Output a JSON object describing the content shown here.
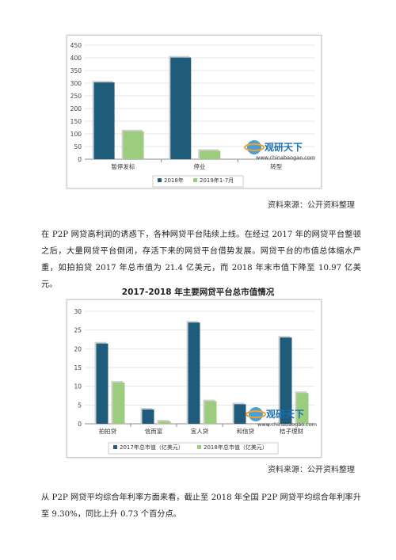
{
  "colors": {
    "series1": "#1f5c7c",
    "series2": "#9ccc7e",
    "grid": "#e4e4e4",
    "axis": "#555555"
  },
  "chart1": {
    "chart_data": {
      "type": "bar",
      "categories": [
        "暂停发标",
        "停业",
        "转型"
      ],
      "series": [
        {
          "name": "2018年",
          "values": [
            303,
            401,
            0
          ],
          "color": "#1f5c7c"
        },
        {
          "name": "2019年1-7月",
          "values": [
            110,
            33,
            0
          ],
          "color": "#9ccc7e"
        }
      ],
      "ylim": [
        0,
        450
      ],
      "yticks": [
        0,
        50,
        100,
        150,
        200,
        250,
        300,
        350,
        400,
        450
      ],
      "legend": "bottom",
      "grid": true
    }
  },
  "source1": "资料来源：公开资料整理",
  "paragraph1": "在 P2P 网贷高利润的诱惑下，各种网贷平台陆续上线。在经过 2017 年的网贷平台整顿之后，大量网贷平台倒闭，存活下来的网贷平台借势发展。网贷平台的市值总体缩水严重，如拍拍贷 2017 年总市值为 21.4 亿美元，而 2018 年末市值下降至 10.97 亿美元。",
  "chart2": {
    "title": "2017-2018 年主要网贷平台总市值情况",
    "chart_data": {
      "type": "bar",
      "categories": [
        "拍拍贷",
        "信而富",
        "宜人贷",
        "和信贷",
        "桔子理财"
      ],
      "series": [
        {
          "name": "2017年总市值（亿美元）",
          "values": [
            21.4,
            3.8,
            27,
            5.2,
            23
          ],
          "color": "#1f5c7c"
        },
        {
          "name": "2018年总市值（亿美元）",
          "values": [
            10.97,
            0.6,
            6,
            0,
            8.2
          ],
          "color": "#9ccc7e"
        }
      ],
      "ylim": [
        0,
        30
      ],
      "yticks": [
        0,
        5,
        10,
        15,
        20,
        25,
        30
      ],
      "legend": "bottom",
      "grid": true
    }
  },
  "source2": "资料来源：公开资料整理",
  "paragraph2": "从 P2P 网贷平均综合年利率方面来看，截止至 2018 年全国 P2P 网贷平均综合年利率升至 9.30%，同比上升 0.73 个百分点。",
  "watermark": {
    "cn": "观研天下",
    "en": "www.chinabaogao.com"
  }
}
